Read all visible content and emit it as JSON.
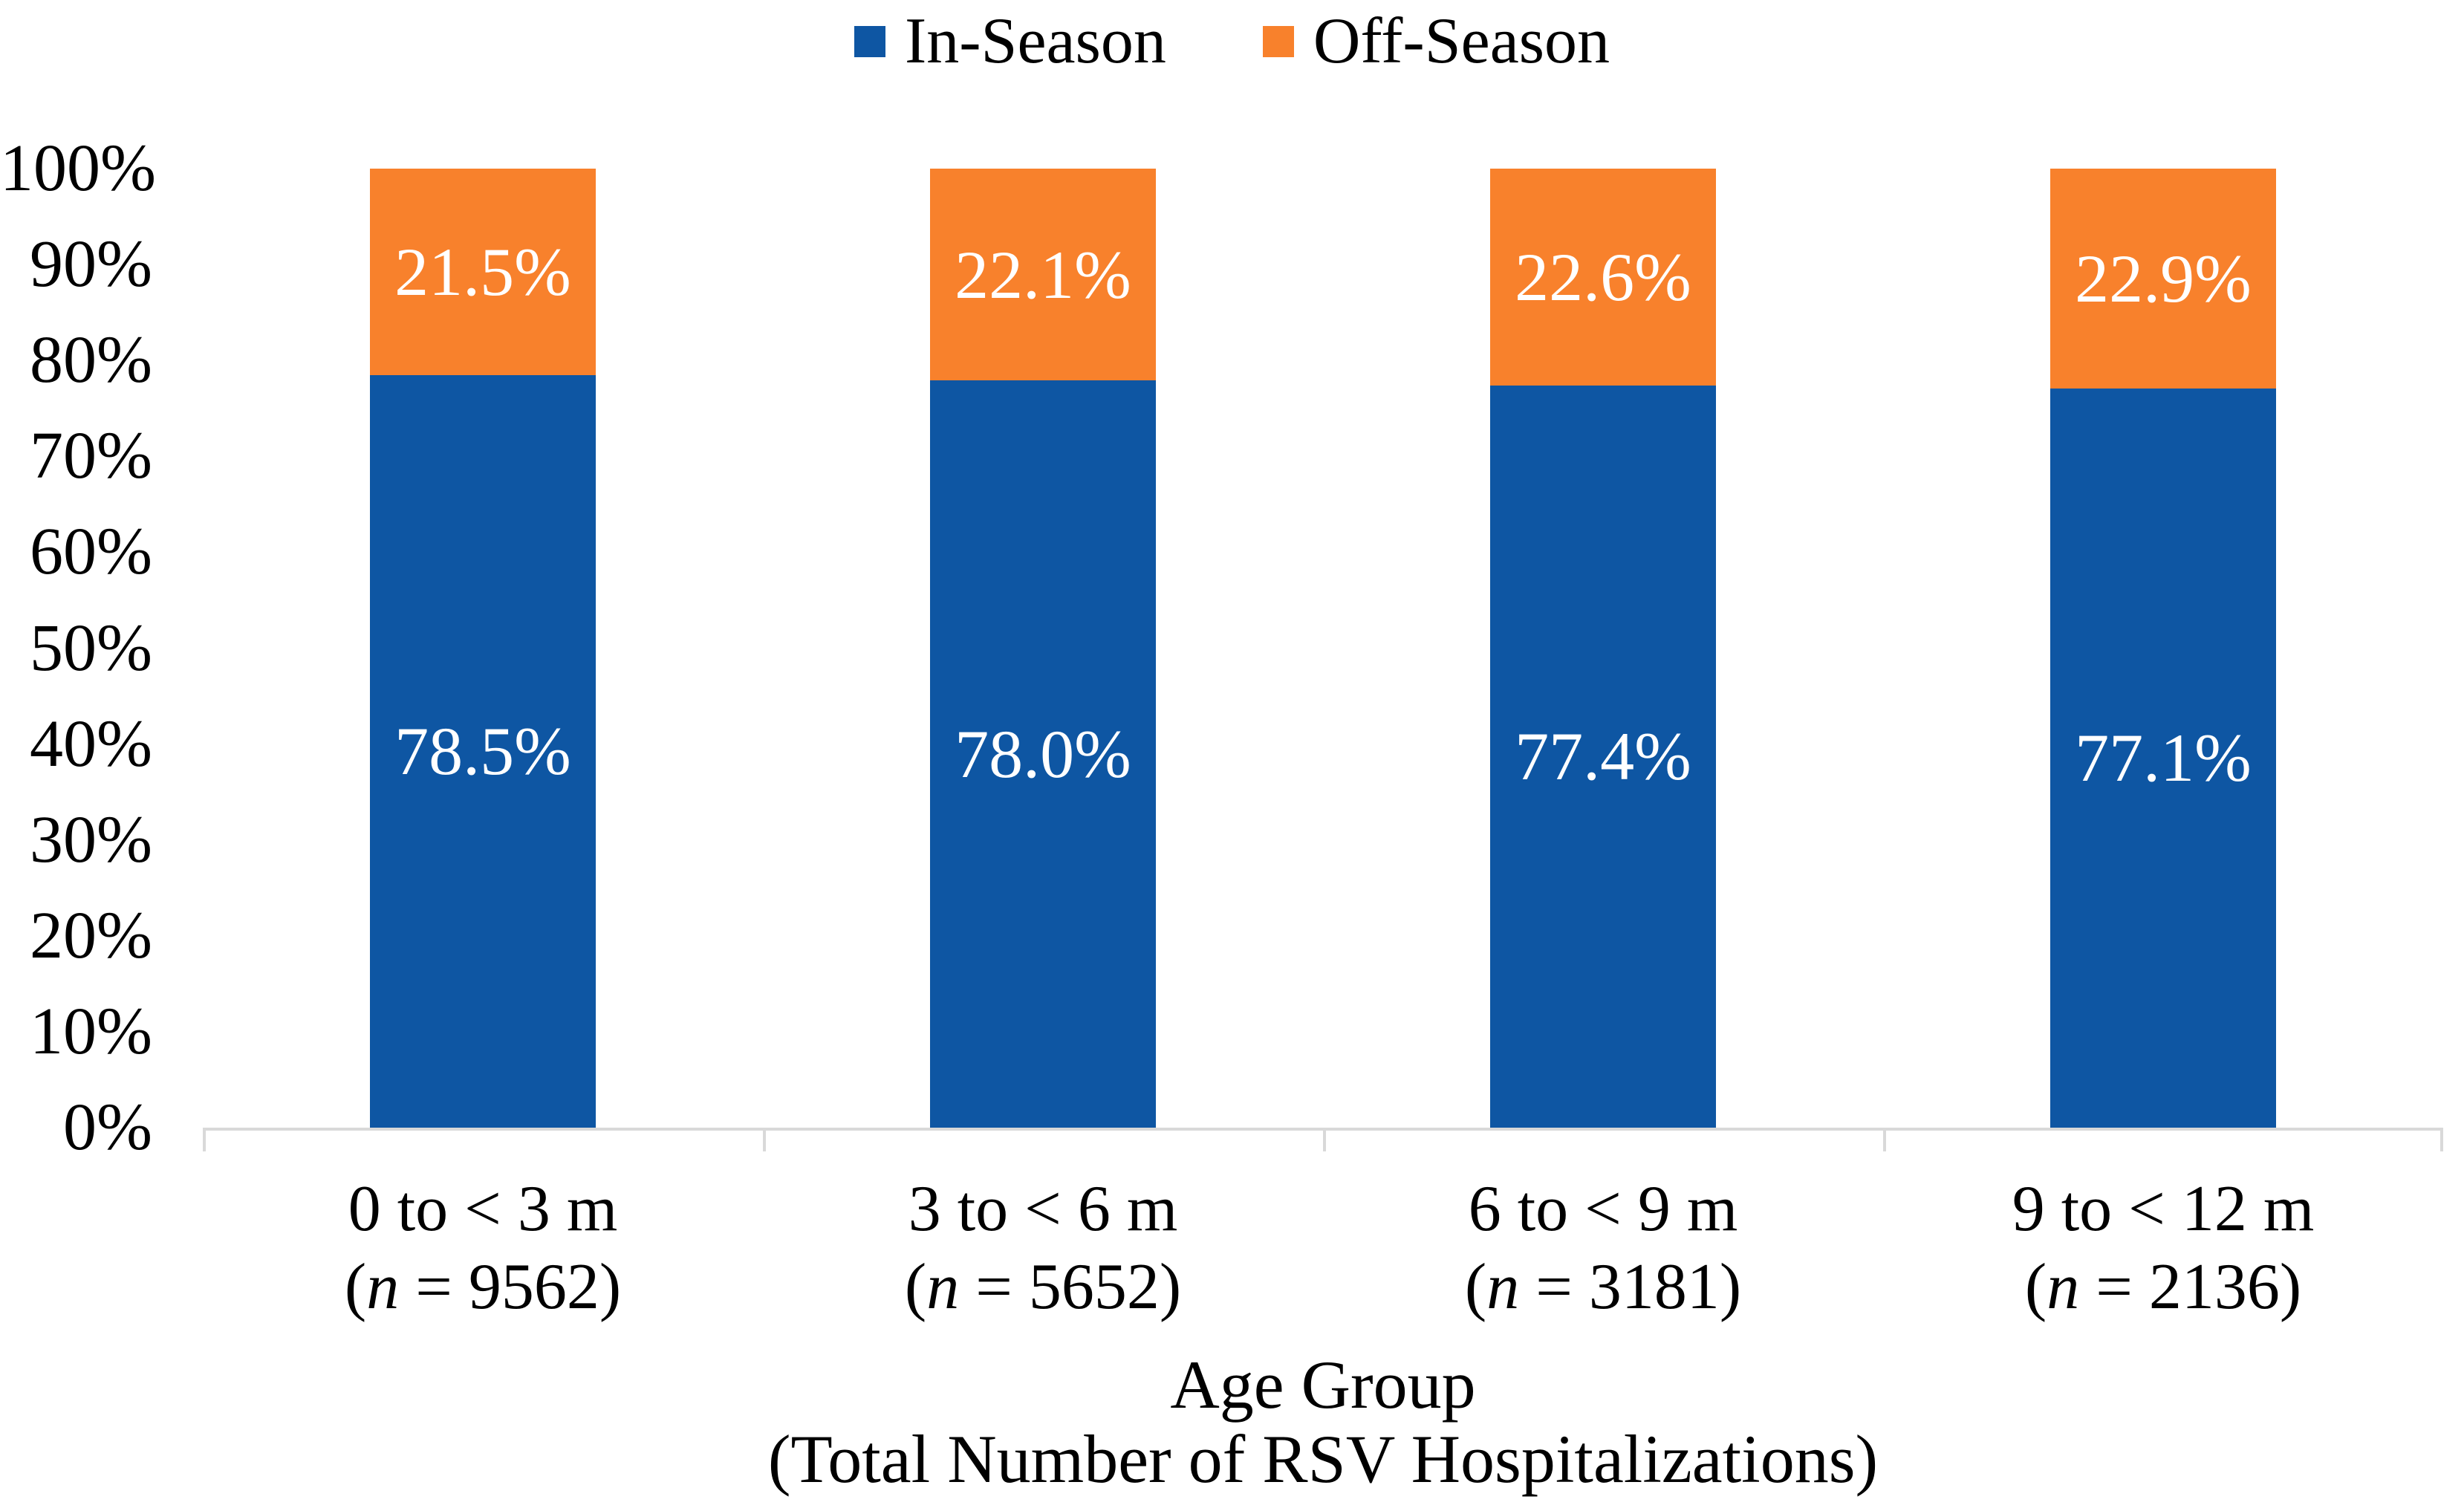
{
  "colors": {
    "in_season": "#0E56A3",
    "off_season": "#F8812C",
    "axis_line": "#D9D9D9",
    "data_label_text": "#FFFFFF",
    "text": "#000000",
    "background": "#FFFFFF"
  },
  "legend": {
    "position": "top",
    "items": [
      {
        "label": "In-Season",
        "color": "#0E56A3"
      },
      {
        "label": "Off-Season",
        "color": "#F8812C"
      }
    ]
  },
  "chart_data": {
    "type": "bar",
    "stacked": true,
    "orientation": "vertical",
    "title": "",
    "grid": false,
    "categories": [
      {
        "label": "0 to < 3 m",
        "n_value": "9562"
      },
      {
        "label": "3 to < 6 m",
        "n_value": "5652"
      },
      {
        "label": "6 to < 9 m",
        "n_value": "3181"
      },
      {
        "label": "9 to < 12 m",
        "n_value": "2136"
      }
    ],
    "series": [
      {
        "name": "In-Season",
        "color": "#0E56A3",
        "values": [
          78.5,
          78.0,
          77.4,
          77.1
        ],
        "labels": [
          "78.5%",
          "78.0%",
          "77.4%",
          "77.1%"
        ]
      },
      {
        "name": "Off-Season",
        "color": "#F8812C",
        "values": [
          21.5,
          22.1,
          22.6,
          22.9
        ],
        "labels": [
          "21.5%",
          "22.1%",
          "22.6%",
          "22.9%"
        ]
      }
    ],
    "y_axis": {
      "min": 0,
      "max": 100,
      "tick_step": 10,
      "ticks": [
        "0%",
        "10%",
        "20%",
        "30%",
        "40%",
        "50%",
        "60%",
        "70%",
        "80%",
        "90%",
        "100%"
      ]
    },
    "x_axis": {
      "title_line1": "Age Group",
      "title_line2": "(Total Number of RSV Hospitalizations)",
      "n_paren_open": "(",
      "n_symbol": "n",
      "n_equals": " = ",
      "n_paren_close": ")"
    }
  }
}
